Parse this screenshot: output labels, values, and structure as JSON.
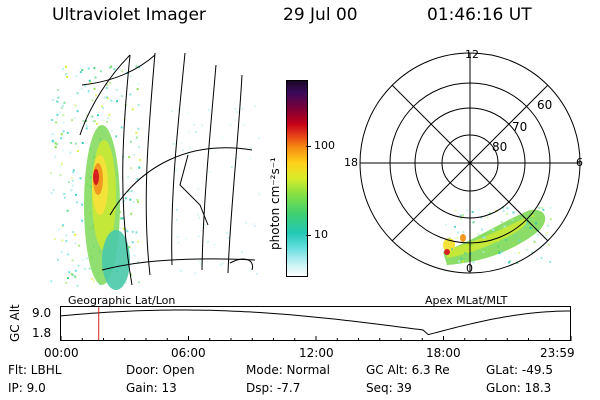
{
  "header": {
    "instrument": "Ultraviolet Imager",
    "date": "29 Jul 00",
    "time": "01:46:16 UT"
  },
  "colorbar": {
    "unit_label": "photon cm⁻²s⁻¹",
    "tick_100": "100",
    "tick_10": "10"
  },
  "left_panel": {
    "caption": "Geographic Lat/Lon"
  },
  "polar_plot": {
    "caption": "Apex MLat/MLT",
    "mlt_top": "12",
    "mlt_left": "18",
    "mlt_right": "6",
    "mlt_bottom": "0",
    "lat_60": "60",
    "lat_70": "70",
    "lat_80": "80"
  },
  "timeline": {
    "ylabel": "GC Alt",
    "ytick_top": "9.0",
    "ytick_bottom": "1.8",
    "xticks": [
      "00:00",
      "06:00",
      "12:00",
      "18:00",
      "23:59"
    ],
    "current_fraction": 0.074
  },
  "footer": {
    "flt": "Flt:  LBHL",
    "ip": "IP:  9.0",
    "door": "Door:  Open",
    "gain": "Gain:  13",
    "mode": "Mode:  Normal",
    "dsp": "Dsp:   -7.7",
    "gcalt": "GC Alt:  6.3 Re",
    "seq": "Seq:  39",
    "glat": "GLat:  -49.5",
    "glon": "GLon:  18.3"
  },
  "colors": {
    "marker": "#d62020",
    "line": "#000000"
  }
}
